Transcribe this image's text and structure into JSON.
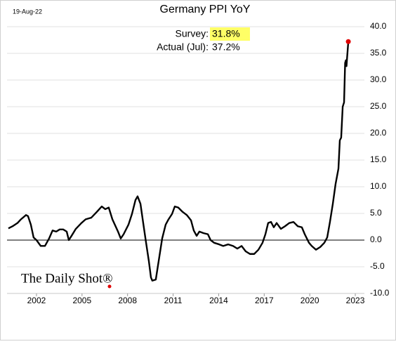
{
  "chart_data": {
    "type": "line",
    "title": "Germany PPI YoY",
    "date_label": "19-Aug-22",
    "source": "The Daily Shot®",
    "annotations": [
      {
        "label": "Survey:",
        "value_label": "31.8%"
      },
      {
        "label": "Actual (Jul):",
        "value_label": "37.2%"
      }
    ],
    "x": [
      2000.15,
      2000.43,
      2000.75,
      2000.98,
      2001.31,
      2001.44,
      2001.63,
      2001.81,
      2002.0,
      2002.28,
      2002.56,
      2002.83,
      2003.06,
      2003.3,
      2003.53,
      2003.76,
      2003.99,
      2004.13,
      2004.31,
      2004.59,
      2004.96,
      2005.24,
      2005.61,
      2005.98,
      2006.3,
      2006.53,
      2006.76,
      2007.0,
      2007.37,
      2007.55,
      2007.74,
      2008.06,
      2008.29,
      2008.52,
      2008.66,
      2008.85,
      2009.03,
      2009.22,
      2009.4,
      2009.54,
      2009.63,
      2009.86,
      2010.05,
      2010.28,
      2010.51,
      2010.7,
      2010.93,
      2011.11,
      2011.34,
      2011.62,
      2011.9,
      2012.18,
      2012.36,
      2012.55,
      2012.73,
      2013.01,
      2013.29,
      2013.47,
      2013.7,
      2014.03,
      2014.3,
      2014.63,
      2014.95,
      2015.23,
      2015.51,
      2015.78,
      2016.06,
      2016.34,
      2016.62,
      2016.89,
      2017.08,
      2017.26,
      2017.45,
      2017.63,
      2017.82,
      2018.1,
      2018.37,
      2018.65,
      2018.93,
      2019.21,
      2019.48,
      2019.67,
      2019.95,
      2020.13,
      2020.41,
      2020.69,
      2020.96,
      2021.15,
      2021.33,
      2021.52,
      2021.7,
      2021.89,
      2021.98,
      2022.07,
      2022.17,
      2022.26,
      2022.33,
      2022.38,
      2022.42,
      2022.46,
      2022.54
    ],
    "series": [
      {
        "name": "Germany PPI YoY",
        "color": "#000000",
        "marker_color": "#e00000",
        "values": [
          2.2,
          2.6,
          3.2,
          3.9,
          4.7,
          4.5,
          2.9,
          0.5,
          0,
          -1.1,
          -1.1,
          0.3,
          1.8,
          1.6,
          2.0,
          2.0,
          1.6,
          0,
          0.8,
          2.1,
          3.2,
          3.9,
          4.2,
          5.3,
          6.3,
          5.8,
          6.1,
          3.9,
          1.6,
          0.3,
          1.1,
          2.9,
          4.9,
          7.5,
          8.2,
          6.8,
          3.2,
          -0.5,
          -3.9,
          -7.0,
          -7.6,
          -7.4,
          -3.9,
          0.3,
          2.9,
          3.9,
          4.9,
          6.3,
          6.1,
          5.3,
          4.7,
          3.7,
          1.8,
          0.8,
          1.6,
          1.3,
          1.1,
          0,
          -0.5,
          -0.8,
          -1.1,
          -0.8,
          -1.1,
          -1.6,
          -1.1,
          -2.1,
          -2.6,
          -2.6,
          -1.8,
          -0.5,
          1.1,
          3.2,
          3.4,
          2.4,
          3.2,
          2.1,
          2.6,
          3.2,
          3.4,
          2.6,
          2.4,
          1.1,
          -0.5,
          -1.1,
          -1.8,
          -1.3,
          -0.5,
          0.5,
          3.4,
          6.8,
          10.5,
          13.4,
          18.7,
          19.2,
          25.0,
          25.8,
          33.2,
          33.7,
          32.6,
          34.2,
          37.2
        ]
      }
    ],
    "xlim": [
      2000.06,
      2023.6
    ],
    "xticks": [
      2002,
      2005,
      2008,
      2011,
      2014,
      2017,
      2020,
      2023
    ],
    "ylim": [
      -10,
      40
    ],
    "yticks": [
      {
        "value": -10,
        "label": "-10.0"
      },
      {
        "value": -5,
        "label": "-5.0"
      },
      {
        "value": 0,
        "label": "0.0"
      },
      {
        "value": 5,
        "label": "5.0"
      },
      {
        "value": 10,
        "label": "10.0"
      },
      {
        "value": 15,
        "label": "15.0"
      },
      {
        "value": 20,
        "label": "20.0"
      },
      {
        "value": 25,
        "label": "25.0"
      },
      {
        "value": 30,
        "label": "30.0"
      },
      {
        "value": 35,
        "label": "35.0"
      },
      {
        "value": 40,
        "label": "40.0"
      }
    ],
    "y_axis_side": "right",
    "grid": true,
    "zero_line": true,
    "highlight_color": "#ffff66"
  }
}
